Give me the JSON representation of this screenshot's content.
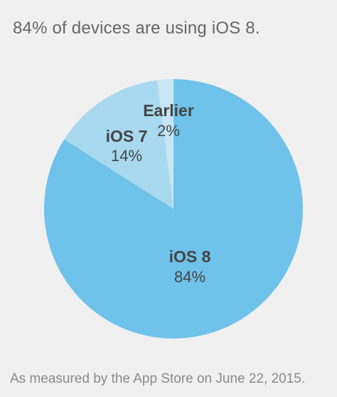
{
  "header": {
    "headline": "84% of devices are using iOS 8."
  },
  "footer": {
    "note": "As measured by the App Store on June 22, 2015."
  },
  "chart_data": {
    "type": "pie",
    "title": "84% of devices are using iOS 8.",
    "slices": [
      {
        "label": "iOS 8",
        "value": 84,
        "value_text": "84%",
        "color": "#6fc2ea"
      },
      {
        "label": "iOS 7",
        "value": 14,
        "value_text": "14%",
        "color": "#a9d9ef"
      },
      {
        "label": "Earlier",
        "value": 2,
        "value_text": "2%",
        "color": "#c6e6f4"
      }
    ],
    "start_angle": "12 o'clock",
    "direction": "clockwise",
    "background_color": "#f0f0f0"
  }
}
